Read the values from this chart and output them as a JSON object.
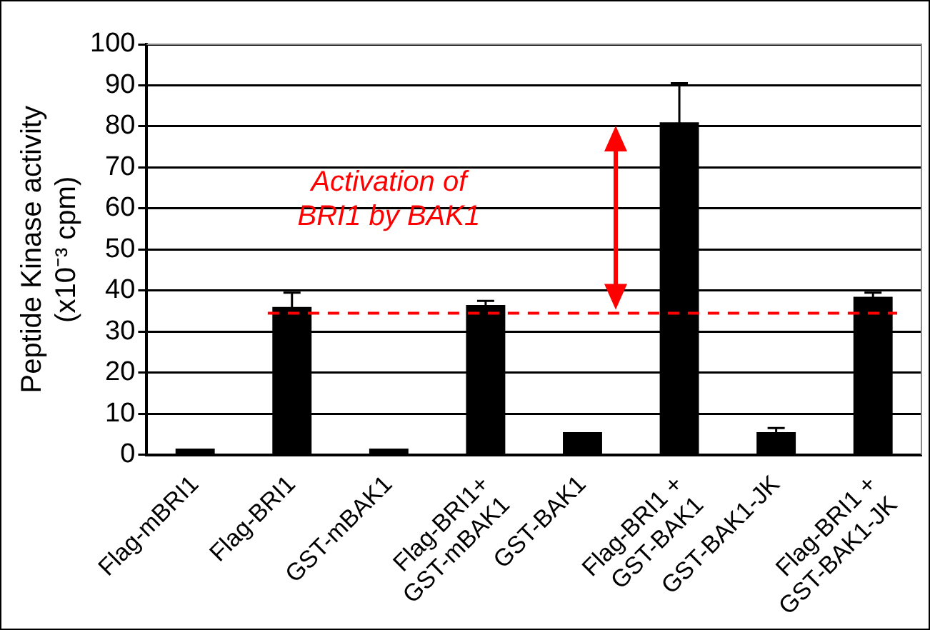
{
  "chart_data": {
    "type": "bar",
    "ylabel": "Peptide Kinase activity\n(x10⁻³ cpm)",
    "categories": [
      "Flag-mBRI1",
      "Flag-BRI1",
      "GST-mBAK1",
      "Flag-BRI1+\nGST-mBAK1",
      "GST-BAK1",
      "Flag-BRI1 +\nGST-BAK1",
      "GST-BAK1-JK",
      "Flag-BRI1 +\nGST-BAK1-JK"
    ],
    "values": [
      1.5,
      36,
      1.5,
      36.5,
      5.5,
      81,
      5.5,
      38.5
    ],
    "errors": [
      null,
      3.5,
      null,
      1,
      null,
      9.5,
      1,
      1
    ],
    "color": "#000000",
    "ylim": [
      0,
      100
    ],
    "yticks": [
      0,
      10,
      20,
      30,
      40,
      50,
      60,
      70,
      80,
      90,
      100
    ],
    "grid": "y",
    "legend": false,
    "ref_lines": [
      {
        "axis": "y",
        "value": 34.5,
        "color": "#ff0000",
        "line_style": "dashed"
      }
    ],
    "annotations": [
      "Activation of\nBRI1 by BAK1"
    ]
  }
}
